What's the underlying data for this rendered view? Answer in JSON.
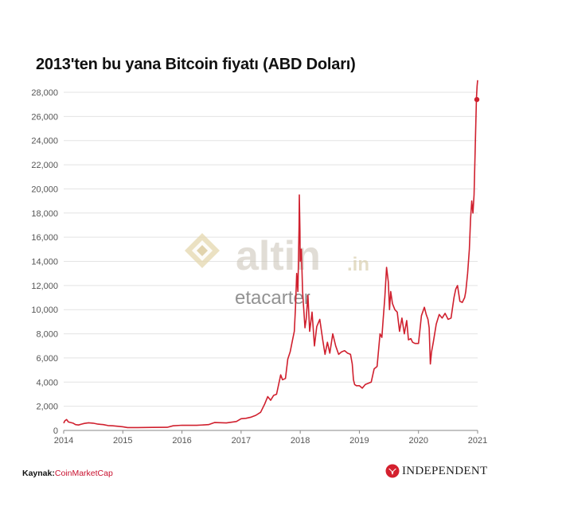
{
  "title": "2013'ten bu yana Bitcoin fiyatı (ABD Doları)",
  "watermark": {
    "brand": "altin",
    "brand_tld": ".in",
    "subtext": "etacarter"
  },
  "source": {
    "label": "Kaynak:",
    "value": "CoinMarketCap"
  },
  "publisher": {
    "name": "INDEPENDENT",
    "logo": "eagle-icon"
  },
  "colors": {
    "line": "#d0202e",
    "accent": "#c8102e",
    "grid": "#e3e3e3"
  },
  "chart_data": {
    "type": "line",
    "title": "2013'ten bu yana Bitcoin fiyatı (ABD Doları)",
    "xlabel": "",
    "ylabel": "",
    "xlim": [
      2014.0,
      2021.0
    ],
    "ylim": [
      0,
      28000
    ],
    "x_ticks": [
      "2014",
      "2015",
      "2016",
      "2017",
      "2018",
      "2019",
      "2020",
      "2021"
    ],
    "y_ticks": [
      "0",
      "2,000",
      "4,000",
      "6,000",
      "8,000",
      "10,000",
      "12,000",
      "14,000",
      "16,000",
      "18,000",
      "20,000",
      "22,000",
      "24,000",
      "26,000",
      "28,000"
    ],
    "grid": true,
    "legend": "none",
    "series": [
      {
        "x": [
          2014.0,
          2014.02,
          2014.05,
          2014.08,
          2014.12,
          2014.16,
          2014.2,
          2014.25,
          2014.3,
          2014.35,
          2014.42,
          2014.5,
          2014.58,
          2014.67,
          2014.75,
          2014.83,
          2014.92,
          2015.0,
          2015.08,
          2015.25,
          2015.5,
          2015.75,
          2015.85,
          2016.0,
          2016.25,
          2016.45,
          2016.55,
          2016.75,
          2016.92,
          2017.0,
          2017.08,
          2017.17,
          2017.25,
          2017.33,
          2017.4,
          2017.45,
          2017.5,
          2017.55,
          2017.6,
          2017.67,
          2017.7,
          2017.75,
          2017.79,
          2017.83,
          2017.87,
          2017.9,
          2017.92,
          2017.94,
          2017.96,
          2017.97,
          2017.98,
          2017.985,
          2017.995,
          2018.0,
          2018.02,
          2018.04,
          2018.06,
          2018.08,
          2018.1,
          2018.13,
          2018.16,
          2018.2,
          2018.24,
          2018.28,
          2018.33,
          2018.38,
          2018.42,
          2018.46,
          2018.5,
          2018.55,
          2018.6,
          2018.65,
          2018.7,
          2018.75,
          2018.8,
          2018.85,
          2018.88,
          2018.9,
          2018.92,
          2018.95,
          2019.0,
          2019.05,
          2019.1,
          2019.15,
          2019.2,
          2019.25,
          2019.3,
          2019.35,
          2019.38,
          2019.4,
          2019.43,
          2019.46,
          2019.49,
          2019.51,
          2019.53,
          2019.56,
          2019.6,
          2019.64,
          2019.68,
          2019.72,
          2019.76,
          2019.8,
          2019.83,
          2019.87,
          2019.9,
          2019.94,
          2020.0,
          2020.05,
          2020.1,
          2020.13,
          2020.16,
          2020.18,
          2020.2,
          2020.22,
          2020.25,
          2020.3,
          2020.35,
          2020.4,
          2020.45,
          2020.5,
          2020.55,
          2020.6,
          2020.63,
          2020.66,
          2020.7,
          2020.74,
          2020.78,
          2020.8,
          2020.83,
          2020.86,
          2020.88,
          2020.9,
          2020.92,
          2020.94,
          2020.96,
          2020.98,
          2020.99,
          2021.0
        ],
        "y": [
          600,
          800,
          900,
          700,
          650,
          600,
          480,
          450,
          520,
          580,
          630,
          600,
          520,
          480,
          400,
          380,
          340,
          300,
          240,
          240,
          250,
          260,
          380,
          430,
          420,
          480,
          650,
          620,
          740,
          970,
          1000,
          1100,
          1250,
          1500,
          2200,
          2800,
          2500,
          2900,
          3000,
          4600,
          4200,
          4300,
          5900,
          6500,
          7500,
          8200,
          10200,
          13000,
          11500,
          14000,
          17000,
          19500,
          16500,
          14000,
          15000,
          11500,
          10000,
          8500,
          9200,
          11200,
          8200,
          9800,
          7000,
          8600,
          9200,
          7500,
          6300,
          7300,
          6400,
          8000,
          7000,
          6300,
          6500,
          6600,
          6400,
          6300,
          5500,
          4200,
          3800,
          3700,
          3700,
          3500,
          3800,
          3900,
          4000,
          5100,
          5300,
          8000,
          7700,
          9000,
          11000,
          13500,
          12300,
          10000,
          11500,
          10500,
          10000,
          9800,
          8200,
          9300,
          8000,
          9100,
          7500,
          7600,
          7300,
          7200,
          7200,
          9500,
          10200,
          9600,
          9200,
          8500,
          5500,
          6500,
          7300,
          8800,
          9600,
          9300,
          9700,
          9200,
          9300,
          11000,
          11700,
          12000,
          10700,
          10600,
          11000,
          11500,
          13000,
          15000,
          17500,
          19000,
          18000,
          19500,
          23500,
          27500,
          28500,
          29000
        ],
        "end_marker": 27400
      }
    ]
  }
}
